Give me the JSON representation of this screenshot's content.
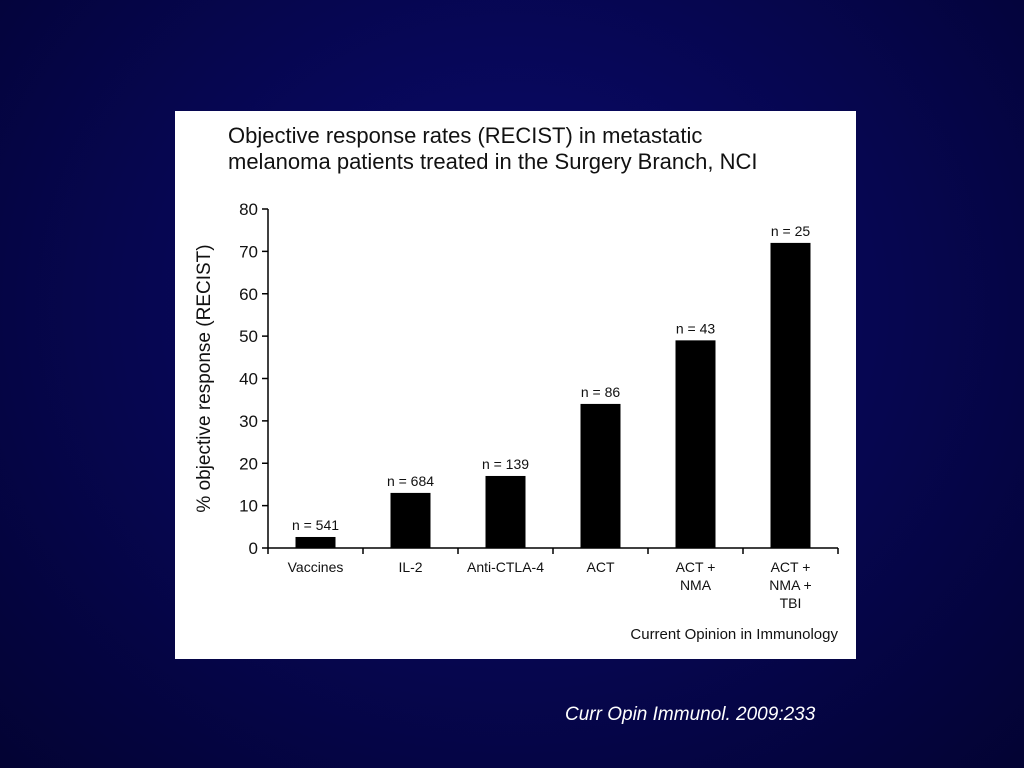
{
  "chart_data": {
    "type": "bar",
    "title_lines": [
      "Objective response rates (RECIST) in metastatic",
      "melanoma patients treated in the Surgery Branch, NCI"
    ],
    "ylabel": "% objective response (RECIST)",
    "xlabel": "",
    "ylim": [
      0,
      80
    ],
    "yticks": [
      0,
      10,
      20,
      30,
      40,
      50,
      60,
      70,
      80
    ],
    "grid": false,
    "categories": [
      [
        "Vaccines"
      ],
      [
        "IL-2"
      ],
      [
        "Anti-CTLA-4"
      ],
      [
        "ACT"
      ],
      [
        "ACT +",
        "NMA"
      ],
      [
        "ACT +",
        "NMA +",
        "TBI"
      ]
    ],
    "values": [
      2.6,
      13,
      17,
      34,
      49,
      72
    ],
    "data_labels": [
      "n = 541",
      "n = 684",
      "n = 139",
      "n = 86",
      "n = 43",
      "n = 25"
    ],
    "bar_color": "#000000",
    "source": "Current Opinion in Immunology"
  },
  "citation": "Curr Opin Immunol. 2009:233"
}
